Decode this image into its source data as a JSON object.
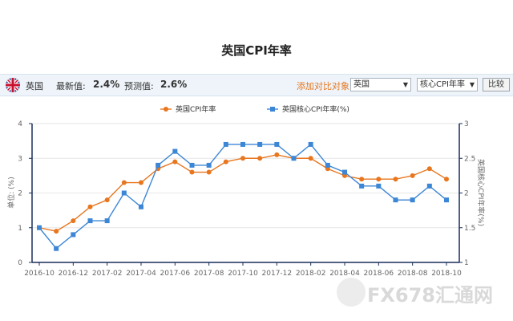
{
  "header": {
    "title": "英国CPI年率"
  },
  "info": {
    "country": "英国",
    "latest_label": "最新值:",
    "latest_value": "2.4%",
    "forecast_label": "预测值:",
    "forecast_value": "2.6%",
    "compare_label": "添加对比对象:",
    "compare_select": "英国",
    "indicator_select": "核心CPI年率",
    "compare_button": "比较"
  },
  "watermark": "FX678汇通网",
  "colors": {
    "series1": "#e8761e",
    "series2": "#3c86d6",
    "axis": "#1a2f5c"
  },
  "chart_data": {
    "type": "line",
    "x_tick_labels": [
      "2016-10",
      "2016-12",
      "2017-02",
      "2017-04",
      "2017-06",
      "2017-08",
      "2017-10",
      "2017-12",
      "2018-02",
      "2018-04",
      "2018-06",
      "2018-08",
      "2018-10"
    ],
    "x": [
      "2016-10",
      "2016-11",
      "2016-12",
      "2017-01",
      "2017-02",
      "2017-03",
      "2017-04",
      "2017-05",
      "2017-06",
      "2017-07",
      "2017-08",
      "2017-09",
      "2017-10",
      "2017-11",
      "2017-12",
      "2018-01",
      "2018-02",
      "2018-03",
      "2018-04",
      "2018-05",
      "2018-06",
      "2018-07",
      "2018-08",
      "2018-09",
      "2018-10"
    ],
    "left_axis": {
      "label": "单位: (%)",
      "range": [
        0,
        4
      ],
      "ticks": [
        "0",
        "1",
        "2",
        "3",
        "4"
      ]
    },
    "right_axis": {
      "label": "英国核心CPI年率(%)",
      "range": [
        1,
        3
      ],
      "ticks": [
        "1",
        "1.5",
        "2",
        "2.5",
        "3"
      ]
    },
    "series": [
      {
        "name": "英国CPI年率",
        "axis": "left",
        "marker": "circle",
        "values": [
          1.0,
          0.9,
          1.2,
          1.6,
          1.8,
          2.3,
          2.3,
          2.7,
          2.9,
          2.6,
          2.6,
          2.9,
          3.0,
          3.0,
          3.1,
          3.0,
          3.0,
          2.7,
          2.5,
          2.4,
          2.4,
          2.4,
          2.5,
          2.7,
          2.4
        ]
      },
      {
        "name": "英国核心CPI年率(%)",
        "axis": "right",
        "marker": "square",
        "values": [
          1.5,
          1.2,
          1.4,
          1.6,
          1.6,
          2.0,
          1.8,
          2.4,
          2.6,
          2.4,
          2.4,
          2.7,
          2.7,
          2.7,
          2.7,
          2.5,
          2.7,
          2.4,
          2.3,
          2.1,
          2.1,
          1.9,
          1.9,
          2.1,
          1.9
        ]
      }
    ],
    "legend": "top",
    "grid": true
  }
}
